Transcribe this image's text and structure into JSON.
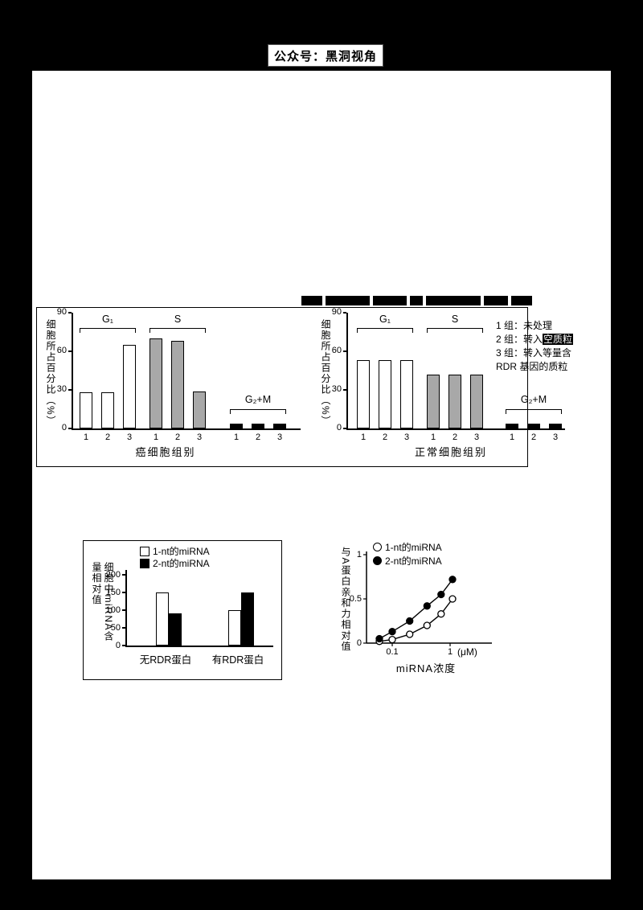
{
  "page": {
    "header_title": "公众号：黑洞视角"
  },
  "figure1": {
    "legend_lines": [
      {
        "plain": "1 组：未处理",
        "inverted": ""
      },
      {
        "plain": "2 组：转入",
        "inverted": "空质粒"
      },
      {
        "plain": "3 组：转入等量含",
        "inverted": ""
      },
      {
        "plain": "RDR 基因的质粒",
        "inverted": ""
      }
    ]
  },
  "chart_data": [
    {
      "id": "cancer-cells",
      "type": "bar",
      "ylabel": "细胞所占百分比（%）",
      "xlabel": "癌细胞组别",
      "ylim": [
        0,
        90
      ],
      "yticks": [
        0,
        30,
        60,
        90
      ],
      "bar_labels": [
        "1",
        "2",
        "3"
      ],
      "phase_groups": [
        {
          "label": "G₁",
          "fill": "white",
          "values": [
            28,
            28,
            65
          ]
        },
        {
          "label": "S",
          "fill": "gray",
          "values": [
            70,
            68,
            29
          ]
        },
        {
          "label": "G₂+M",
          "fill": "black",
          "values": [
            4,
            4,
            4
          ]
        }
      ]
    },
    {
      "id": "normal-cells",
      "type": "bar",
      "ylabel": "细胞所占百分比（%）",
      "xlabel": "正常细胞组别",
      "ylim": [
        0,
        90
      ],
      "yticks": [
        0,
        30,
        60,
        90
      ],
      "bar_labels": [
        "1",
        "2",
        "3"
      ],
      "phase_groups": [
        {
          "label": "G₁",
          "fill": "white",
          "values": [
            53,
            53,
            53
          ]
        },
        {
          "label": "S",
          "fill": "gray",
          "values": [
            42,
            42,
            42
          ]
        },
        {
          "label": "G₂+M",
          "fill": "black",
          "values": [
            4,
            4,
            4
          ]
        }
      ]
    },
    {
      "id": "mirna-content",
      "type": "bar",
      "ylabel": "细胞中miRNA含量相对值",
      "ylim": [
        0,
        200
      ],
      "yticks": [
        0,
        50,
        100,
        150,
        200
      ],
      "categories": [
        "无RDR蛋白",
        "有RDR蛋白"
      ],
      "series": [
        {
          "name": "1-nt的miRNA",
          "fill": "white",
          "values": [
            150,
            100
          ]
        },
        {
          "name": "2-nt的miRNA",
          "fill": "black",
          "values": [
            90,
            150
          ]
        }
      ]
    },
    {
      "id": "protein-affinity",
      "type": "scatter",
      "ylabel": "与A蛋白亲和力相对值",
      "xlabel": "miRNA浓度",
      "x_unit": "(μM)",
      "xscale": "log",
      "xticks": [
        0.1,
        1
      ],
      "yticks": [
        0,
        0.5,
        1
      ],
      "series": [
        {
          "name": "1-nt的miRNA",
          "marker": "open",
          "points": [
            [
              0.06,
              0.02
            ],
            [
              0.1,
              0.04
            ],
            [
              0.2,
              0.1
            ],
            [
              0.4,
              0.2
            ],
            [
              0.7,
              0.33
            ],
            [
              1.1,
              0.5
            ]
          ]
        },
        {
          "name": "2-nt的miRNA",
          "marker": "filled",
          "points": [
            [
              0.06,
              0.05
            ],
            [
              0.1,
              0.13
            ],
            [
              0.2,
              0.25
            ],
            [
              0.4,
              0.42
            ],
            [
              0.7,
              0.55
            ],
            [
              1.1,
              0.72
            ]
          ]
        }
      ]
    }
  ]
}
